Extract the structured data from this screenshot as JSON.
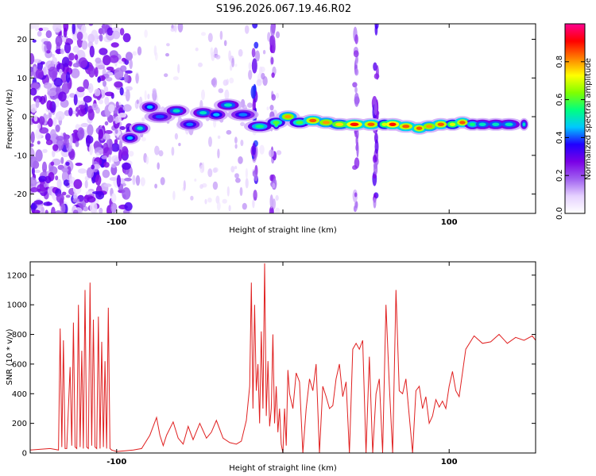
{
  "title": "S196.2026.067.19.46.R02",
  "chart_data": [
    {
      "type": "heatmap",
      "name": "spectrogram",
      "xlabel": "Height of straight line (km)",
      "ylabel": "Frequency (Hz)",
      "xlim": [
        -152,
        152
      ],
      "ylim": [
        -25,
        24
      ],
      "xticks": [
        -100,
        0,
        100
      ],
      "xtick_labels": [
        "-100",
        "",
        "100"
      ],
      "yticks": [
        20,
        10,
        0,
        -10,
        -20
      ],
      "ytick_labels": [
        "20",
        "10",
        "0",
        "-10",
        "-20"
      ],
      "colorbar": {
        "label": "Normalized spectral amplitude",
        "range": [
          0,
          1
        ],
        "ticks": [
          0.0,
          0.2,
          0.4,
          0.6,
          0.8
        ],
        "tick_labels": [
          "0.0",
          "0.2",
          "0.4",
          "0.6",
          "0.8"
        ],
        "colors": [
          "#ffffff",
          "#e6d2ff",
          "#a060f0",
          "#7a00e6",
          "#2000ff",
          "#00c8ff",
          "#00ff80",
          "#80ff00",
          "#ffff00",
          "#ff8000",
          "#ff0000",
          "#ff0090"
        ]
      },
      "ridge": [
        {
          "x": -92,
          "y": -5.5,
          "a": 0.45
        },
        {
          "x": -86,
          "y": -3,
          "a": 0.5
        },
        {
          "x": -80,
          "y": 2.5,
          "a": 0.45
        },
        {
          "x": -74,
          "y": 0,
          "a": 0.4
        },
        {
          "x": -64,
          "y": 1.5,
          "a": 0.5
        },
        {
          "x": -56,
          "y": -2,
          "a": 0.42
        },
        {
          "x": -48,
          "y": 1,
          "a": 0.5
        },
        {
          "x": -40,
          "y": 0.5,
          "a": 0.45
        },
        {
          "x": -33,
          "y": 3,
          "a": 0.5
        },
        {
          "x": -24,
          "y": 0.5,
          "a": 0.42
        },
        {
          "x": -14,
          "y": -2.5,
          "a": 0.55
        },
        {
          "x": -4,
          "y": -2,
          "a": 0.6
        },
        {
          "x": -4,
          "y": -1.5,
          "a": 0.6
        },
        {
          "x": 3,
          "y": 0,
          "a": 0.8
        },
        {
          "x": 10,
          "y": -1.5,
          "a": 0.6
        },
        {
          "x": 18,
          "y": -1,
          "a": 0.85
        },
        {
          "x": 26,
          "y": -1.5,
          "a": 0.8
        },
        {
          "x": 34,
          "y": -2,
          "a": 0.75
        },
        {
          "x": 43,
          "y": -2,
          "a": 0.9
        },
        {
          "x": 53,
          "y": -2,
          "a": 0.85
        },
        {
          "x": 61,
          "y": -2,
          "a": 0.7
        },
        {
          "x": 66,
          "y": -2,
          "a": 0.9
        },
        {
          "x": 74,
          "y": -2.5,
          "a": 0.85
        },
        {
          "x": 82,
          "y": -3,
          "a": 0.85
        },
        {
          "x": 88,
          "y": -2.5,
          "a": 0.8
        },
        {
          "x": 95,
          "y": -2,
          "a": 0.85
        },
        {
          "x": 102,
          "y": -2,
          "a": 0.7
        },
        {
          "x": 108,
          "y": -1.5,
          "a": 0.85
        },
        {
          "x": 114,
          "y": -2,
          "a": 0.55
        },
        {
          "x": 120,
          "y": -2,
          "a": 0.5
        },
        {
          "x": 128,
          "y": -2,
          "a": 0.5
        },
        {
          "x": 136,
          "y": -2,
          "a": 0.5
        },
        {
          "x": 145,
          "y": -2,
          "a": 0.5
        }
      ],
      "noise_bands": [
        {
          "x": -17,
          "ymin": -25,
          "ymax": 24,
          "a": 0.4
        },
        {
          "x": -6,
          "ymin": -25,
          "ymax": 24,
          "a": 0.3
        },
        {
          "x": 44,
          "ymin": -25,
          "ymax": 24,
          "a": 0.25
        },
        {
          "x": 56,
          "ymin": -25,
          "ymax": 24,
          "a": 0.35
        }
      ]
    },
    {
      "type": "line",
      "name": "snr",
      "xlabel": "Height of straight line (km)",
      "ylabel": "SNR (10 * v/v)",
      "xlim": [
        -152,
        152
      ],
      "ylim": [
        0,
        1290
      ],
      "xticks": [
        -100,
        0,
        100
      ],
      "xtick_labels": [
        "-100",
        "",
        "100"
      ],
      "yticks": [
        0,
        200,
        400,
        600,
        800,
        1000,
        1200
      ],
      "ytick_labels": [
        "0",
        "200",
        "400",
        "600",
        "800",
        "1000",
        "1200"
      ],
      "color": "#e02020",
      "series_x": [
        -152,
        -140,
        -135,
        -134,
        -133,
        -132,
        -131,
        -130,
        -128,
        -127,
        -126,
        -125,
        -124,
        -123,
        -122,
        -121,
        -120,
        -119,
        -118,
        -117,
        -116,
        -115,
        -114,
        -113,
        -112,
        -111,
        -110,
        -109,
        -108,
        -107,
        -106,
        -105,
        -104,
        -103,
        -100,
        -95,
        -90,
        -85,
        -80,
        -76,
        -74,
        -72,
        -70,
        -66,
        -63,
        -60,
        -57,
        -54,
        -50,
        -46,
        -43,
        -40,
        -36,
        -32,
        -28,
        -25,
        -22,
        -20,
        -19,
        -18,
        -17,
        -16,
        -15,
        -14,
        -13,
        -12,
        -11,
        -10,
        -9,
        -8,
        -7,
        -6,
        -5,
        -4,
        -3,
        -2,
        -1,
        0,
        1,
        2,
        3,
        4,
        6,
        8,
        10,
        12,
        14,
        16,
        18,
        20,
        22,
        24,
        26,
        28,
        30,
        32,
        34,
        36,
        38,
        40,
        42,
        44,
        46,
        48,
        50,
        52,
        54,
        56,
        58,
        60,
        62,
        64,
        66,
        68,
        70,
        72,
        74,
        76,
        78,
        80,
        82,
        84,
        86,
        88,
        90,
        92,
        94,
        96,
        98,
        100,
        102,
        104,
        106,
        110,
        115,
        120,
        125,
        130,
        135,
        140,
        145,
        150,
        152
      ],
      "series_y": [
        20,
        30,
        20,
        840,
        40,
        760,
        30,
        30,
        580,
        50,
        880,
        40,
        30,
        1000,
        40,
        690,
        30,
        1100,
        40,
        30,
        1150,
        50,
        900,
        40,
        30,
        920,
        30,
        750,
        40,
        620,
        30,
        980,
        30,
        20,
        10,
        15,
        20,
        30,
        120,
        240,
        120,
        50,
        120,
        210,
        100,
        60,
        180,
        90,
        200,
        100,
        140,
        220,
        100,
        70,
        60,
        80,
        220,
        450,
        1150,
        300,
        1000,
        420,
        600,
        200,
        820,
        300,
        1280,
        250,
        620,
        180,
        300,
        800,
        200,
        450,
        140,
        300,
        60,
        0,
        300,
        50,
        560,
        400,
        300,
        540,
        480,
        0,
        300,
        500,
        420,
        600,
        0,
        450,
        380,
        300,
        320,
        500,
        600,
        380,
        480,
        0,
        700,
        740,
        700,
        760,
        0,
        650,
        0,
        400,
        500,
        0,
        1000,
        460,
        0,
        1100,
        420,
        400,
        500,
        250,
        0,
        420,
        450,
        300,
        380,
        200,
        250,
        360,
        310,
        350,
        300,
        450,
        550,
        420,
        380,
        700,
        790,
        740,
        750,
        800,
        740,
        780,
        760,
        790,
        760
      ]
    }
  ]
}
